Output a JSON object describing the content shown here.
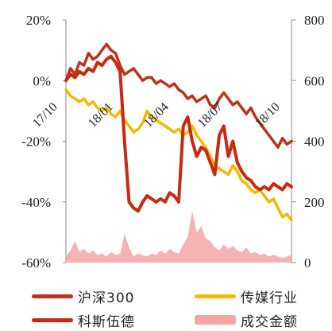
{
  "chart_data": {
    "type": "line",
    "x_ticks": [
      "17/10",
      "18/01",
      "18/04",
      "18/07",
      "18/10"
    ],
    "left_axis": {
      "ticks": [
        "20%",
        "0%",
        "-20%",
        "-40%",
        "-60%"
      ],
      "min": -60,
      "max": 20
    },
    "right_axis": {
      "ticks": [
        "800",
        "600",
        "400",
        "200",
        "0"
      ],
      "min": 0,
      "max": 800
    },
    "series": [
      {
        "name": "沪深300",
        "axis": "left",
        "color": "#c0311a",
        "values": [
          0,
          4,
          2,
          6,
          5,
          9,
          7,
          8,
          10,
          12,
          10,
          9,
          5,
          2,
          3,
          4,
          2,
          0,
          1,
          1,
          -1,
          0,
          -1,
          -2,
          -1,
          -3,
          -4,
          -6,
          -5,
          -7,
          -6,
          -5,
          -8,
          -9,
          -6,
          -4,
          -6,
          -8,
          -7,
          -9,
          -11,
          -9,
          -12,
          -14,
          -16,
          -18,
          -20,
          -22,
          -19,
          -21,
          -20
        ]
      },
      {
        "name": "传媒行业",
        "axis": "left",
        "color": "#f5b800",
        "values": [
          -3,
          -5,
          -6,
          -7,
          -6,
          -8,
          -7,
          -9,
          -10,
          -9,
          -11,
          -12,
          -10,
          -13,
          -15,
          -17,
          -16,
          -14,
          -10,
          -12,
          -13,
          -14,
          -15,
          -16,
          -17,
          -16,
          -18,
          -17,
          -15,
          -18,
          -20,
          -22,
          -25,
          -28,
          -29,
          -30,
          -31,
          -28,
          -30,
          -33,
          -34,
          -36,
          -37,
          -36,
          -38,
          -40,
          -39,
          -42,
          -45,
          -44,
          -46
        ]
      },
      {
        "name": "科斯伍德",
        "axis": "left",
        "color": "#c8290f",
        "values": [
          0,
          2,
          1,
          3,
          2,
          4,
          3,
          6,
          5,
          7,
          8,
          6,
          3,
          -20,
          -40,
          -42,
          -43,
          -40,
          -38,
          -39,
          -40,
          -39,
          -40,
          -37,
          -38,
          -40,
          -15,
          -12,
          -20,
          -25,
          -22,
          -23,
          -27,
          -31,
          -18,
          -15,
          -25,
          -20,
          -27,
          -30,
          -32,
          -33,
          -35,
          -36,
          -35,
          -36,
          -34,
          -35,
          -36,
          -34,
          -35
        ]
      },
      {
        "name": "成交金额",
        "axis": "right",
        "color": "#f4a6a6",
        "values": [
          20,
          40,
          70,
          35,
          45,
          30,
          40,
          25,
          30,
          20,
          35,
          25,
          30,
          95,
          50,
          20,
          30,
          25,
          20,
          30,
          25,
          40,
          30,
          45,
          35,
          30,
          60,
          85,
          170,
          100,
          120,
          80,
          70,
          50,
          40,
          60,
          45,
          55,
          40,
          35,
          50,
          30,
          35,
          25,
          30,
          20,
          25,
          20,
          15,
          20,
          25
        ]
      }
    ],
    "legend_position": "bottom"
  }
}
